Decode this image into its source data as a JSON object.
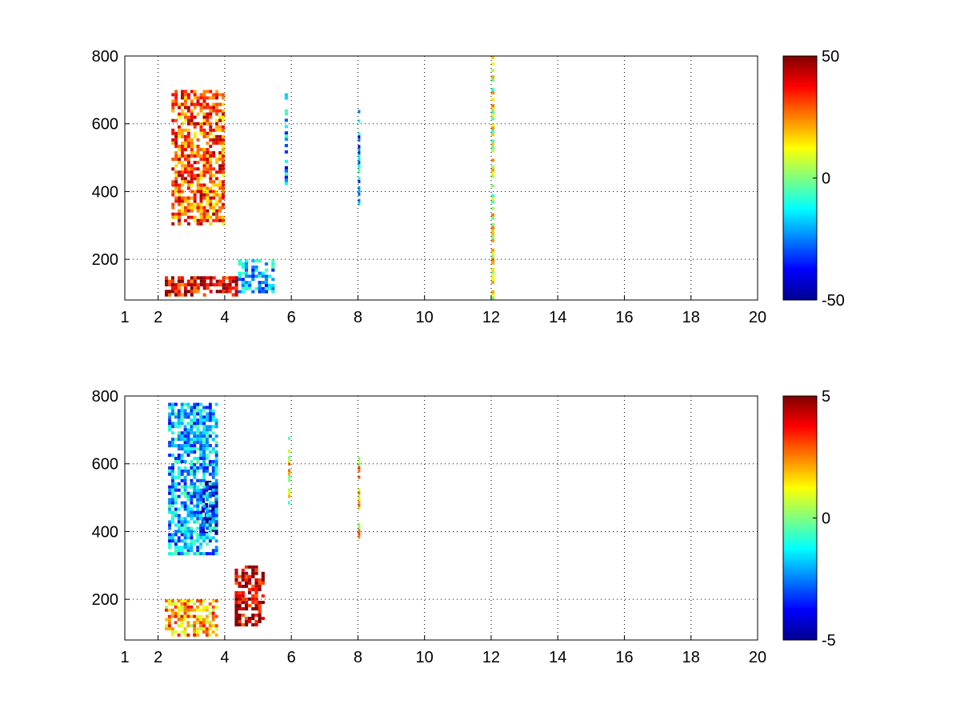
{
  "figure": {
    "background": "#ffffff",
    "colormap": "jet"
  },
  "chart_data": [
    {
      "type": "heatmap",
      "title": "",
      "xlabel": "",
      "ylabel": "",
      "xlim": [
        1,
        20
      ],
      "ylim": [
        80,
        800
      ],
      "grid": true,
      "x_ticks": [
        1,
        2,
        4,
        6,
        8,
        10,
        12,
        14,
        16,
        18,
        20
      ],
      "y_ticks": [
        200,
        400,
        600,
        800
      ],
      "colorbar": {
        "min": -50,
        "max": 50,
        "ticks": [
          50,
          0,
          -50
        ]
      },
      "features": [
        {
          "x": [
            2.2,
            4.4
          ],
          "y": [
            90,
            150
          ],
          "value": 40,
          "description": "strong band near y=120"
        },
        {
          "x": [
            2.4,
            4.0
          ],
          "y": [
            300,
            700
          ],
          "value": 30,
          "description": "diagonal ridge"
        },
        {
          "x": [
            4.4,
            5.5
          ],
          "y": [
            100,
            200
          ],
          "value": -20,
          "description": "cyan patch"
        },
        {
          "x": [
            5.8,
            5.9
          ],
          "y": [
            400,
            690
          ],
          "value": -22,
          "description": "vertical streak"
        },
        {
          "x": [
            8.0,
            8.05
          ],
          "y": [
            350,
            650
          ],
          "value": -20,
          "description": "vertical streak"
        },
        {
          "x": [
            12.0,
            12.1
          ],
          "y": [
            80,
            800
          ],
          "value": 10,
          "description": "vertical line"
        }
      ]
    },
    {
      "type": "heatmap",
      "title": "",
      "xlabel": "",
      "ylabel": "",
      "xlim": [
        1,
        20
      ],
      "ylim": [
        80,
        800
      ],
      "grid": true,
      "x_ticks": [
        1,
        2,
        4,
        6,
        8,
        10,
        12,
        14,
        16,
        18,
        20
      ],
      "y_ticks": [
        200,
        400,
        600,
        800
      ],
      "colorbar": {
        "min": -5,
        "max": 5,
        "ticks": [
          5,
          0,
          -5
        ]
      },
      "features": [
        {
          "x": [
            3.3,
            3.8
          ],
          "y": [
            390,
            550
          ],
          "value": -5,
          "description": "dark blue cluster"
        },
        {
          "x": [
            2.3,
            3.8
          ],
          "y": [
            330,
            780
          ],
          "value": -2,
          "description": "cyan ridge"
        },
        {
          "x": [
            2.2,
            3.8
          ],
          "y": [
            90,
            200
          ],
          "value": 2,
          "description": "yellow/orange band"
        },
        {
          "x": [
            4.3,
            5.2
          ],
          "y": [
            120,
            300
          ],
          "value": 4.5,
          "description": "red streaks"
        },
        {
          "x": [
            5.9,
            5.95
          ],
          "y": [
            480,
            680
          ],
          "value": 1,
          "description": "vertical streak"
        },
        {
          "x": [
            8.0,
            8.05
          ],
          "y": [
            370,
            630
          ],
          "value": 1.5,
          "description": "vertical streak"
        }
      ]
    }
  ]
}
